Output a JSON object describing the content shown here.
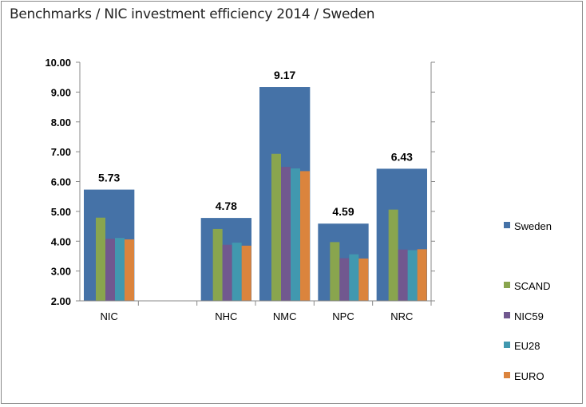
{
  "chart_data": {
    "type": "bar",
    "title": "Benchmarks / NIC investment efficiency 2014 / Sweden",
    "categories": [
      "NIC",
      "",
      "NHC",
      "NMC",
      "NPC",
      "NRC"
    ],
    "ylim": [
      2,
      10
    ],
    "yticks": [
      "2.00",
      "3.00",
      "4.00",
      "5.00",
      "6.00",
      "7.00",
      "8.00",
      "9.00",
      "10.00"
    ],
    "grid": false,
    "legend": "right",
    "series": [
      {
        "name": "Sweden",
        "color": "#4572a7",
        "values": [
          5.73,
          null,
          4.78,
          9.17,
          4.59,
          6.43
        ],
        "labels": [
          "5.73",
          "",
          "4.78",
          "9.17",
          "4.59",
          "6.43"
        ]
      },
      {
        "name": "SCAND",
        "color": "#89a54e",
        "values": [
          4.79,
          null,
          4.41,
          6.93,
          3.97,
          5.06
        ]
      },
      {
        "name": "NIC59",
        "color": "#71588f",
        "values": [
          4.08,
          null,
          3.88,
          6.49,
          3.43,
          3.72
        ]
      },
      {
        "name": "EU28",
        "color": "#4198af",
        "values": [
          4.11,
          null,
          3.95,
          6.44,
          3.56,
          3.7
        ]
      },
      {
        "name": "EURO",
        "color": "#db843d",
        "values": [
          4.06,
          null,
          3.85,
          6.35,
          3.42,
          3.73
        ]
      }
    ]
  }
}
